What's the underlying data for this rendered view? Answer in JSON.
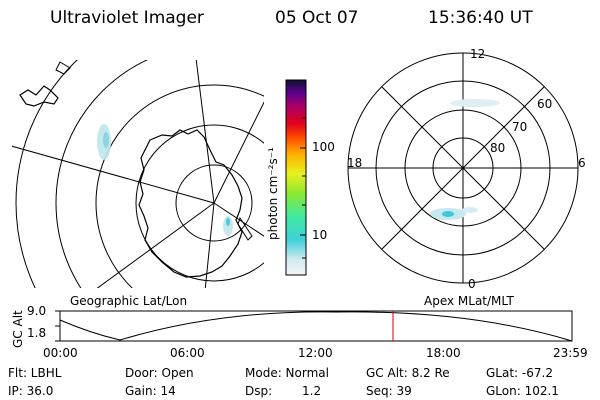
{
  "header": {
    "instrument": "Ultraviolet Imager",
    "date": "05 Oct 07",
    "time": "15:36:40 UT"
  },
  "colorbar": {
    "label": "photon cm⁻²s⁻¹",
    "ticks": [
      "100",
      "10"
    ]
  },
  "left_panel": {
    "caption": "Geographic Lat/Lon"
  },
  "right_panel": {
    "caption": "Apex MLat/MLT",
    "lat_labels": [
      "60",
      "70",
      "80"
    ],
    "mlt_labels": [
      "12",
      "18",
      "6",
      "0"
    ]
  },
  "orbit_plot": {
    "ylabel": "GC Alt",
    "y_ticks": [
      "9.0",
      "1.8"
    ],
    "x_ticks": [
      "00:00",
      "06:00",
      "12:00",
      "18:00",
      "23:59"
    ],
    "current_time_marker_hours": 15.61,
    "marker_color": "#d40000"
  },
  "footer": {
    "flt": "Flt: LBHL",
    "ip": "IP: 36.0",
    "door": "Door: Open",
    "gain": "Gain: 14",
    "mode": "Mode: Normal",
    "dsp_label": "Dsp:",
    "dsp_value": "1.2",
    "gc_alt": "GC Alt: 8.2 Re",
    "seq": "Seq: 39",
    "glat": "GLat: -67.2",
    "glon": "GLon: 102.1"
  }
}
